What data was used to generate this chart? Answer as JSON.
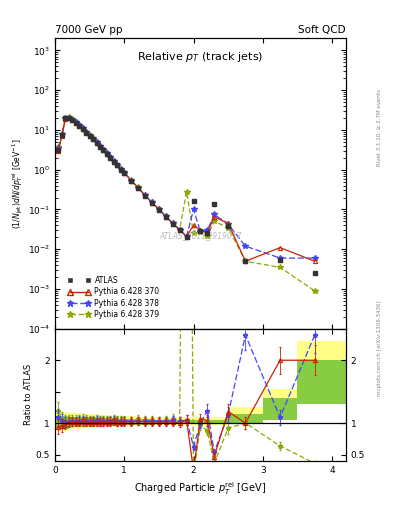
{
  "title_left": "7000 GeV pp",
  "title_right": "Soft QCD",
  "plot_title": "Relative p_{T} (track jets)",
  "xlabel": "Charged Particle p_{T}^{rel} [GeV]",
  "ylabel_main": "(1/Njet)dN/dp_{T}^{rel} [GeV^{-1}]",
  "ylabel_ratio": "Ratio to ATLAS",
  "watermark": "ATLAS_2011_I919017",
  "right_label_top": "Rivet 3.1.10; ≥ 2.7M events",
  "right_label_bot": "mcplots.cern.ch [arXiv:1306.3436]",
  "atlas_x": [
    0.05,
    0.1,
    0.15,
    0.2,
    0.25,
    0.3,
    0.35,
    0.4,
    0.45,
    0.5,
    0.55,
    0.6,
    0.65,
    0.7,
    0.75,
    0.8,
    0.85,
    0.9,
    0.95,
    1.0,
    1.1,
    1.2,
    1.3,
    1.4,
    1.5,
    1.6,
    1.7,
    1.8,
    1.9,
    2.0,
    2.1,
    2.2,
    2.3,
    2.5,
    2.75,
    3.25,
    3.75
  ],
  "atlas_y": [
    3.2,
    7.5,
    19.5,
    20.0,
    17.5,
    15.0,
    12.5,
    10.5,
    8.5,
    7.0,
    5.8,
    4.7,
    3.8,
    3.1,
    2.5,
    2.0,
    1.6,
    1.3,
    1.0,
    0.82,
    0.52,
    0.34,
    0.22,
    0.145,
    0.098,
    0.065,
    0.043,
    0.03,
    0.02,
    0.16,
    0.028,
    0.025,
    0.14,
    0.038,
    0.005,
    0.0055,
    0.0025
  ],
  "atlas_yerr": [
    0.4,
    0.8,
    1.5,
    1.5,
    1.2,
    1.0,
    0.8,
    0.7,
    0.55,
    0.45,
    0.37,
    0.3,
    0.24,
    0.2,
    0.16,
    0.13,
    0.1,
    0.085,
    0.065,
    0.053,
    0.033,
    0.022,
    0.014,
    0.009,
    0.006,
    0.004,
    0.003,
    0.002,
    0.0014,
    0.012,
    0.002,
    0.002,
    0.012,
    0.004,
    0.0005,
    0.0006,
    0.0003
  ],
  "py370_x": [
    0.05,
    0.1,
    0.15,
    0.2,
    0.25,
    0.3,
    0.35,
    0.4,
    0.45,
    0.5,
    0.55,
    0.6,
    0.65,
    0.7,
    0.75,
    0.8,
    0.85,
    0.9,
    0.95,
    1.0,
    1.1,
    1.2,
    1.3,
    1.4,
    1.5,
    1.6,
    1.7,
    1.8,
    1.9,
    2.0,
    2.1,
    2.2,
    2.3,
    2.5,
    2.75,
    3.25,
    3.75
  ],
  "py370_y": [
    3.0,
    7.2,
    19.0,
    20.2,
    17.8,
    15.2,
    12.8,
    10.8,
    8.7,
    7.1,
    5.9,
    4.8,
    3.85,
    3.15,
    2.55,
    2.05,
    1.65,
    1.32,
    1.02,
    0.84,
    0.53,
    0.35,
    0.225,
    0.148,
    0.1,
    0.066,
    0.044,
    0.03,
    0.021,
    0.04,
    0.03,
    0.026,
    0.065,
    0.045,
    0.005,
    0.011,
    0.005
  ],
  "py378_x": [
    0.05,
    0.1,
    0.15,
    0.2,
    0.25,
    0.3,
    0.35,
    0.4,
    0.45,
    0.5,
    0.55,
    0.6,
    0.65,
    0.7,
    0.75,
    0.8,
    0.85,
    0.9,
    0.95,
    1.0,
    1.1,
    1.2,
    1.3,
    1.4,
    1.5,
    1.6,
    1.7,
    1.8,
    1.9,
    2.0,
    2.1,
    2.2,
    2.3,
    2.5,
    2.75,
    3.25,
    3.75
  ],
  "py378_y": [
    3.5,
    7.8,
    19.8,
    20.5,
    18.0,
    15.5,
    13.0,
    11.0,
    8.8,
    7.2,
    6.0,
    4.9,
    3.9,
    3.18,
    2.57,
    2.07,
    1.67,
    1.33,
    1.03,
    0.85,
    0.535,
    0.352,
    0.228,
    0.15,
    0.101,
    0.067,
    0.045,
    0.031,
    0.021,
    0.1,
    0.028,
    0.03,
    0.075,
    0.043,
    0.012,
    0.006,
    0.006
  ],
  "py379_x": [
    0.05,
    0.1,
    0.15,
    0.2,
    0.25,
    0.3,
    0.35,
    0.4,
    0.45,
    0.5,
    0.55,
    0.6,
    0.65,
    0.7,
    0.75,
    0.8,
    0.85,
    0.9,
    0.95,
    1.0,
    1.1,
    1.2,
    1.3,
    1.4,
    1.5,
    1.6,
    1.7,
    1.8,
    1.9,
    2.0,
    2.1,
    2.2,
    2.3,
    2.5,
    2.75,
    3.25,
    3.75
  ],
  "py379_y": [
    3.8,
    8.0,
    20.5,
    21.0,
    18.5,
    15.8,
    13.2,
    11.2,
    9.0,
    7.3,
    6.1,
    5.0,
    4.0,
    3.25,
    2.6,
    2.1,
    1.7,
    1.35,
    1.05,
    0.86,
    0.54,
    0.36,
    0.23,
    0.152,
    0.102,
    0.068,
    0.046,
    0.031,
    0.28,
    0.025,
    0.027,
    0.022,
    0.05,
    0.035,
    0.005,
    0.0035,
    0.0009
  ],
  "band_yellow_x": [
    0.0,
    0.2,
    0.4,
    0.6,
    0.8,
    1.0,
    1.2,
    1.4,
    1.6,
    1.8,
    2.0,
    2.5,
    3.0,
    3.5,
    4.0,
    4.2
  ],
  "band_yellow_lo": [
    0.87,
    0.9,
    0.92,
    0.93,
    0.94,
    0.95,
    0.96,
    0.97,
    0.97,
    0.97,
    0.97,
    1.0,
    1.05,
    1.3,
    1.3,
    1.3
  ],
  "band_yellow_hi": [
    1.18,
    1.16,
    1.14,
    1.13,
    1.12,
    1.11,
    1.1,
    1.09,
    1.09,
    1.09,
    1.09,
    1.25,
    1.55,
    2.3,
    2.3,
    2.3
  ],
  "band_green_x": [
    0.0,
    0.2,
    0.4,
    0.6,
    0.8,
    1.0,
    1.2,
    1.4,
    1.6,
    1.8,
    2.0,
    2.5,
    3.0,
    3.5,
    4.0,
    4.2
  ],
  "band_green_lo": [
    0.91,
    0.93,
    0.94,
    0.95,
    0.96,
    0.97,
    0.97,
    0.98,
    0.98,
    0.98,
    0.98,
    1.0,
    1.05,
    1.3,
    1.3,
    1.3
  ],
  "band_green_hi": [
    1.12,
    1.1,
    1.09,
    1.08,
    1.07,
    1.06,
    1.06,
    1.05,
    1.05,
    1.05,
    1.05,
    1.15,
    1.4,
    2.0,
    2.0,
    2.0
  ],
  "color_atlas": "#333333",
  "color_py370": "#CC2200",
  "color_py378": "#4444FF",
  "color_py379": "#88AA00",
  "color_yellow": "#FFFF88",
  "color_green": "#88CC44",
  "bg_color": "#ffffff",
  "xlim": [
    0,
    4.2
  ],
  "ylim_main": [
    0.0001,
    2000
  ],
  "ylim_ratio": [
    0.4,
    2.5
  ]
}
